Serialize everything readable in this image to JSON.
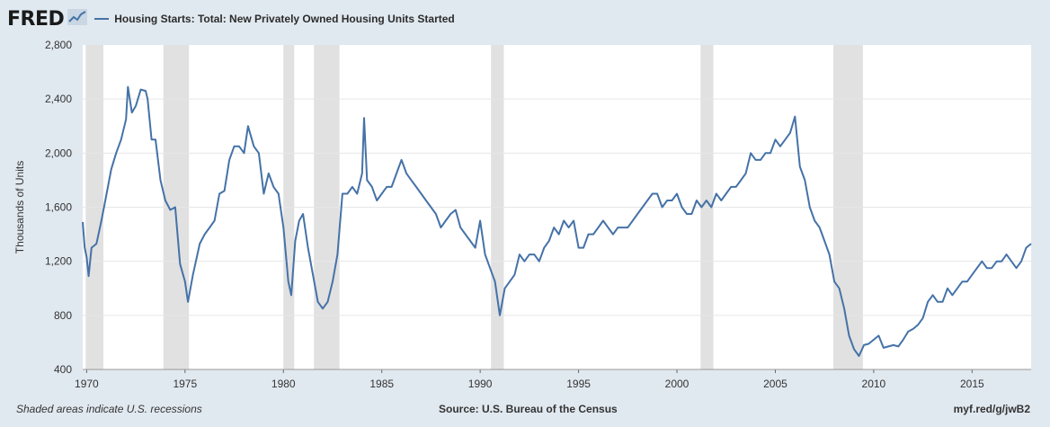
{
  "header": {
    "logo": "FRED",
    "logo_icon": "line-chart-icon"
  },
  "chart_data": {
    "type": "line",
    "legend_position": "top-left",
    "grid": true,
    "ylabel": "Thousands of Units",
    "xlim": [
      1969.8,
      2018.0
    ],
    "ylim": [
      400,
      2800
    ],
    "y_ticks": [
      400,
      800,
      1200,
      1600,
      2000,
      2400,
      2800
    ],
    "y_tick_labels": [
      "400",
      "800",
      "1,200",
      "1,600",
      "2,000",
      "2,400",
      "2,800"
    ],
    "x_ticks": [
      1970,
      1975,
      1980,
      1985,
      1990,
      1995,
      2000,
      2005,
      2010,
      2015
    ],
    "x_tick_labels": [
      "1970",
      "1975",
      "1980",
      "1985",
      "1990",
      "1995",
      "2000",
      "2005",
      "2010",
      "2015"
    ],
    "recessions": [
      [
        1969.95,
        1970.85
      ],
      [
        1973.9,
        1975.2
      ],
      [
        1980.0,
        1980.55
      ],
      [
        1981.55,
        1982.85
      ],
      [
        1990.55,
        1991.2
      ],
      [
        2001.2,
        2001.85
      ],
      [
        2007.95,
        2009.45
      ]
    ],
    "series": [
      {
        "name": "Housing Starts: Total: New Privately Owned Housing Units Started",
        "color": "#4572a7",
        "points": [
          [
            1969.8,
            1490
          ],
          [
            1969.9,
            1300
          ],
          [
            1970.0,
            1230
          ],
          [
            1970.1,
            1090
          ],
          [
            1970.25,
            1300
          ],
          [
            1970.5,
            1330
          ],
          [
            1970.75,
            1500
          ],
          [
            1971.0,
            1690
          ],
          [
            1971.25,
            1880
          ],
          [
            1971.5,
            2000
          ],
          [
            1971.75,
            2100
          ],
          [
            1972.0,
            2250
          ],
          [
            1972.1,
            2490
          ],
          [
            1972.3,
            2300
          ],
          [
            1972.5,
            2350
          ],
          [
            1972.75,
            2470
          ],
          [
            1973.0,
            2460
          ],
          [
            1973.1,
            2400
          ],
          [
            1973.3,
            2100
          ],
          [
            1973.5,
            2100
          ],
          [
            1973.75,
            1800
          ],
          [
            1974.0,
            1650
          ],
          [
            1974.25,
            1580
          ],
          [
            1974.5,
            1600
          ],
          [
            1974.75,
            1180
          ],
          [
            1975.0,
            1050
          ],
          [
            1975.15,
            900
          ],
          [
            1975.4,
            1100
          ],
          [
            1975.75,
            1330
          ],
          [
            1976.0,
            1400
          ],
          [
            1976.25,
            1450
          ],
          [
            1976.5,
            1500
          ],
          [
            1976.75,
            1700
          ],
          [
            1977.0,
            1720
          ],
          [
            1977.25,
            1950
          ],
          [
            1977.5,
            2050
          ],
          [
            1977.75,
            2050
          ],
          [
            1978.0,
            2000
          ],
          [
            1978.2,
            2200
          ],
          [
            1978.5,
            2050
          ],
          [
            1978.75,
            2000
          ],
          [
            1979.0,
            1700
          ],
          [
            1979.25,
            1850
          ],
          [
            1979.5,
            1750
          ],
          [
            1979.75,
            1700
          ],
          [
            1980.0,
            1450
          ],
          [
            1980.25,
            1050
          ],
          [
            1980.4,
            950
          ],
          [
            1980.6,
            1350
          ],
          [
            1980.8,
            1500
          ],
          [
            1981.0,
            1550
          ],
          [
            1981.25,
            1300
          ],
          [
            1981.5,
            1100
          ],
          [
            1981.75,
            900
          ],
          [
            1982.0,
            850
          ],
          [
            1982.25,
            900
          ],
          [
            1982.5,
            1050
          ],
          [
            1982.75,
            1250
          ],
          [
            1983.0,
            1700
          ],
          [
            1983.25,
            1700
          ],
          [
            1983.5,
            1750
          ],
          [
            1983.75,
            1700
          ],
          [
            1984.0,
            1850
          ],
          [
            1984.1,
            2260
          ],
          [
            1984.25,
            1800
          ],
          [
            1984.5,
            1750
          ],
          [
            1984.75,
            1650
          ],
          [
            1985.0,
            1700
          ],
          [
            1985.25,
            1750
          ],
          [
            1985.5,
            1750
          ],
          [
            1985.75,
            1850
          ],
          [
            1986.0,
            1950
          ],
          [
            1986.25,
            1850
          ],
          [
            1986.5,
            1800
          ],
          [
            1986.75,
            1750
          ],
          [
            1987.0,
            1700
          ],
          [
            1987.25,
            1650
          ],
          [
            1987.5,
            1600
          ],
          [
            1987.75,
            1550
          ],
          [
            1988.0,
            1450
          ],
          [
            1988.25,
            1500
          ],
          [
            1988.5,
            1550
          ],
          [
            1988.75,
            1580
          ],
          [
            1989.0,
            1450
          ],
          [
            1989.25,
            1400
          ],
          [
            1989.5,
            1350
          ],
          [
            1989.75,
            1300
          ],
          [
            1990.0,
            1500
          ],
          [
            1990.25,
            1250
          ],
          [
            1990.5,
            1150
          ],
          [
            1990.75,
            1050
          ],
          [
            1991.0,
            800
          ],
          [
            1991.25,
            1000
          ],
          [
            1991.5,
            1050
          ],
          [
            1991.75,
            1100
          ],
          [
            1992.0,
            1250
          ],
          [
            1992.25,
            1200
          ],
          [
            1992.5,
            1250
          ],
          [
            1992.75,
            1250
          ],
          [
            1993.0,
            1200
          ],
          [
            1993.25,
            1300
          ],
          [
            1993.5,
            1350
          ],
          [
            1993.75,
            1450
          ],
          [
            1994.0,
            1400
          ],
          [
            1994.25,
            1500
          ],
          [
            1994.5,
            1450
          ],
          [
            1994.75,
            1500
          ],
          [
            1995.0,
            1300
          ],
          [
            1995.25,
            1300
          ],
          [
            1995.5,
            1400
          ],
          [
            1995.75,
            1400
          ],
          [
            1996.0,
            1450
          ],
          [
            1996.25,
            1500
          ],
          [
            1996.5,
            1450
          ],
          [
            1996.75,
            1400
          ],
          [
            1997.0,
            1450
          ],
          [
            1997.25,
            1450
          ],
          [
            1997.5,
            1450
          ],
          [
            1997.75,
            1500
          ],
          [
            1998.0,
            1550
          ],
          [
            1998.25,
            1600
          ],
          [
            1998.5,
            1650
          ],
          [
            1998.75,
            1700
          ],
          [
            1999.0,
            1700
          ],
          [
            1999.25,
            1600
          ],
          [
            1999.5,
            1650
          ],
          [
            1999.75,
            1650
          ],
          [
            2000.0,
            1700
          ],
          [
            2000.25,
            1600
          ],
          [
            2000.5,
            1550
          ],
          [
            2000.75,
            1550
          ],
          [
            2001.0,
            1650
          ],
          [
            2001.25,
            1600
          ],
          [
            2001.5,
            1650
          ],
          [
            2001.75,
            1600
          ],
          [
            2002.0,
            1700
          ],
          [
            2002.25,
            1650
          ],
          [
            2002.5,
            1700
          ],
          [
            2002.75,
            1750
          ],
          [
            2003.0,
            1750
          ],
          [
            2003.25,
            1800
          ],
          [
            2003.5,
            1850
          ],
          [
            2003.75,
            2000
          ],
          [
            2004.0,
            1950
          ],
          [
            2004.25,
            1950
          ],
          [
            2004.5,
            2000
          ],
          [
            2004.75,
            2000
          ],
          [
            2005.0,
            2100
          ],
          [
            2005.25,
            2050
          ],
          [
            2005.5,
            2100
          ],
          [
            2005.75,
            2150
          ],
          [
            2006.0,
            2270
          ],
          [
            2006.25,
            1900
          ],
          [
            2006.5,
            1800
          ],
          [
            2006.75,
            1600
          ],
          [
            2007.0,
            1500
          ],
          [
            2007.25,
            1450
          ],
          [
            2007.5,
            1350
          ],
          [
            2007.75,
            1250
          ],
          [
            2008.0,
            1050
          ],
          [
            2008.25,
            1000
          ],
          [
            2008.5,
            850
          ],
          [
            2008.75,
            650
          ],
          [
            2009.0,
            550
          ],
          [
            2009.25,
            500
          ],
          [
            2009.5,
            580
          ],
          [
            2009.75,
            590
          ],
          [
            2010.0,
            620
          ],
          [
            2010.25,
            650
          ],
          [
            2010.5,
            560
          ],
          [
            2010.75,
            570
          ],
          [
            2011.0,
            580
          ],
          [
            2011.25,
            570
          ],
          [
            2011.5,
            620
          ],
          [
            2011.75,
            680
          ],
          [
            2012.0,
            700
          ],
          [
            2012.25,
            730
          ],
          [
            2012.5,
            780
          ],
          [
            2012.75,
            900
          ],
          [
            2013.0,
            950
          ],
          [
            2013.25,
            900
          ],
          [
            2013.5,
            900
          ],
          [
            2013.75,
            1000
          ],
          [
            2014.0,
            950
          ],
          [
            2014.25,
            1000
          ],
          [
            2014.5,
            1050
          ],
          [
            2014.75,
            1050
          ],
          [
            2015.0,
            1100
          ],
          [
            2015.25,
            1150
          ],
          [
            2015.5,
            1200
          ],
          [
            2015.75,
            1150
          ],
          [
            2016.0,
            1150
          ],
          [
            2016.25,
            1200
          ],
          [
            2016.5,
            1200
          ],
          [
            2016.75,
            1250
          ],
          [
            2017.0,
            1200
          ],
          [
            2017.25,
            1150
          ],
          [
            2017.5,
            1200
          ],
          [
            2017.75,
            1300
          ],
          [
            2018.0,
            1330
          ]
        ]
      }
    ]
  },
  "footer": {
    "note": "Shaded areas indicate U.S. recessions",
    "source": "Source: U.S. Bureau of the Census",
    "link": "myf.red/g/jwB2"
  }
}
